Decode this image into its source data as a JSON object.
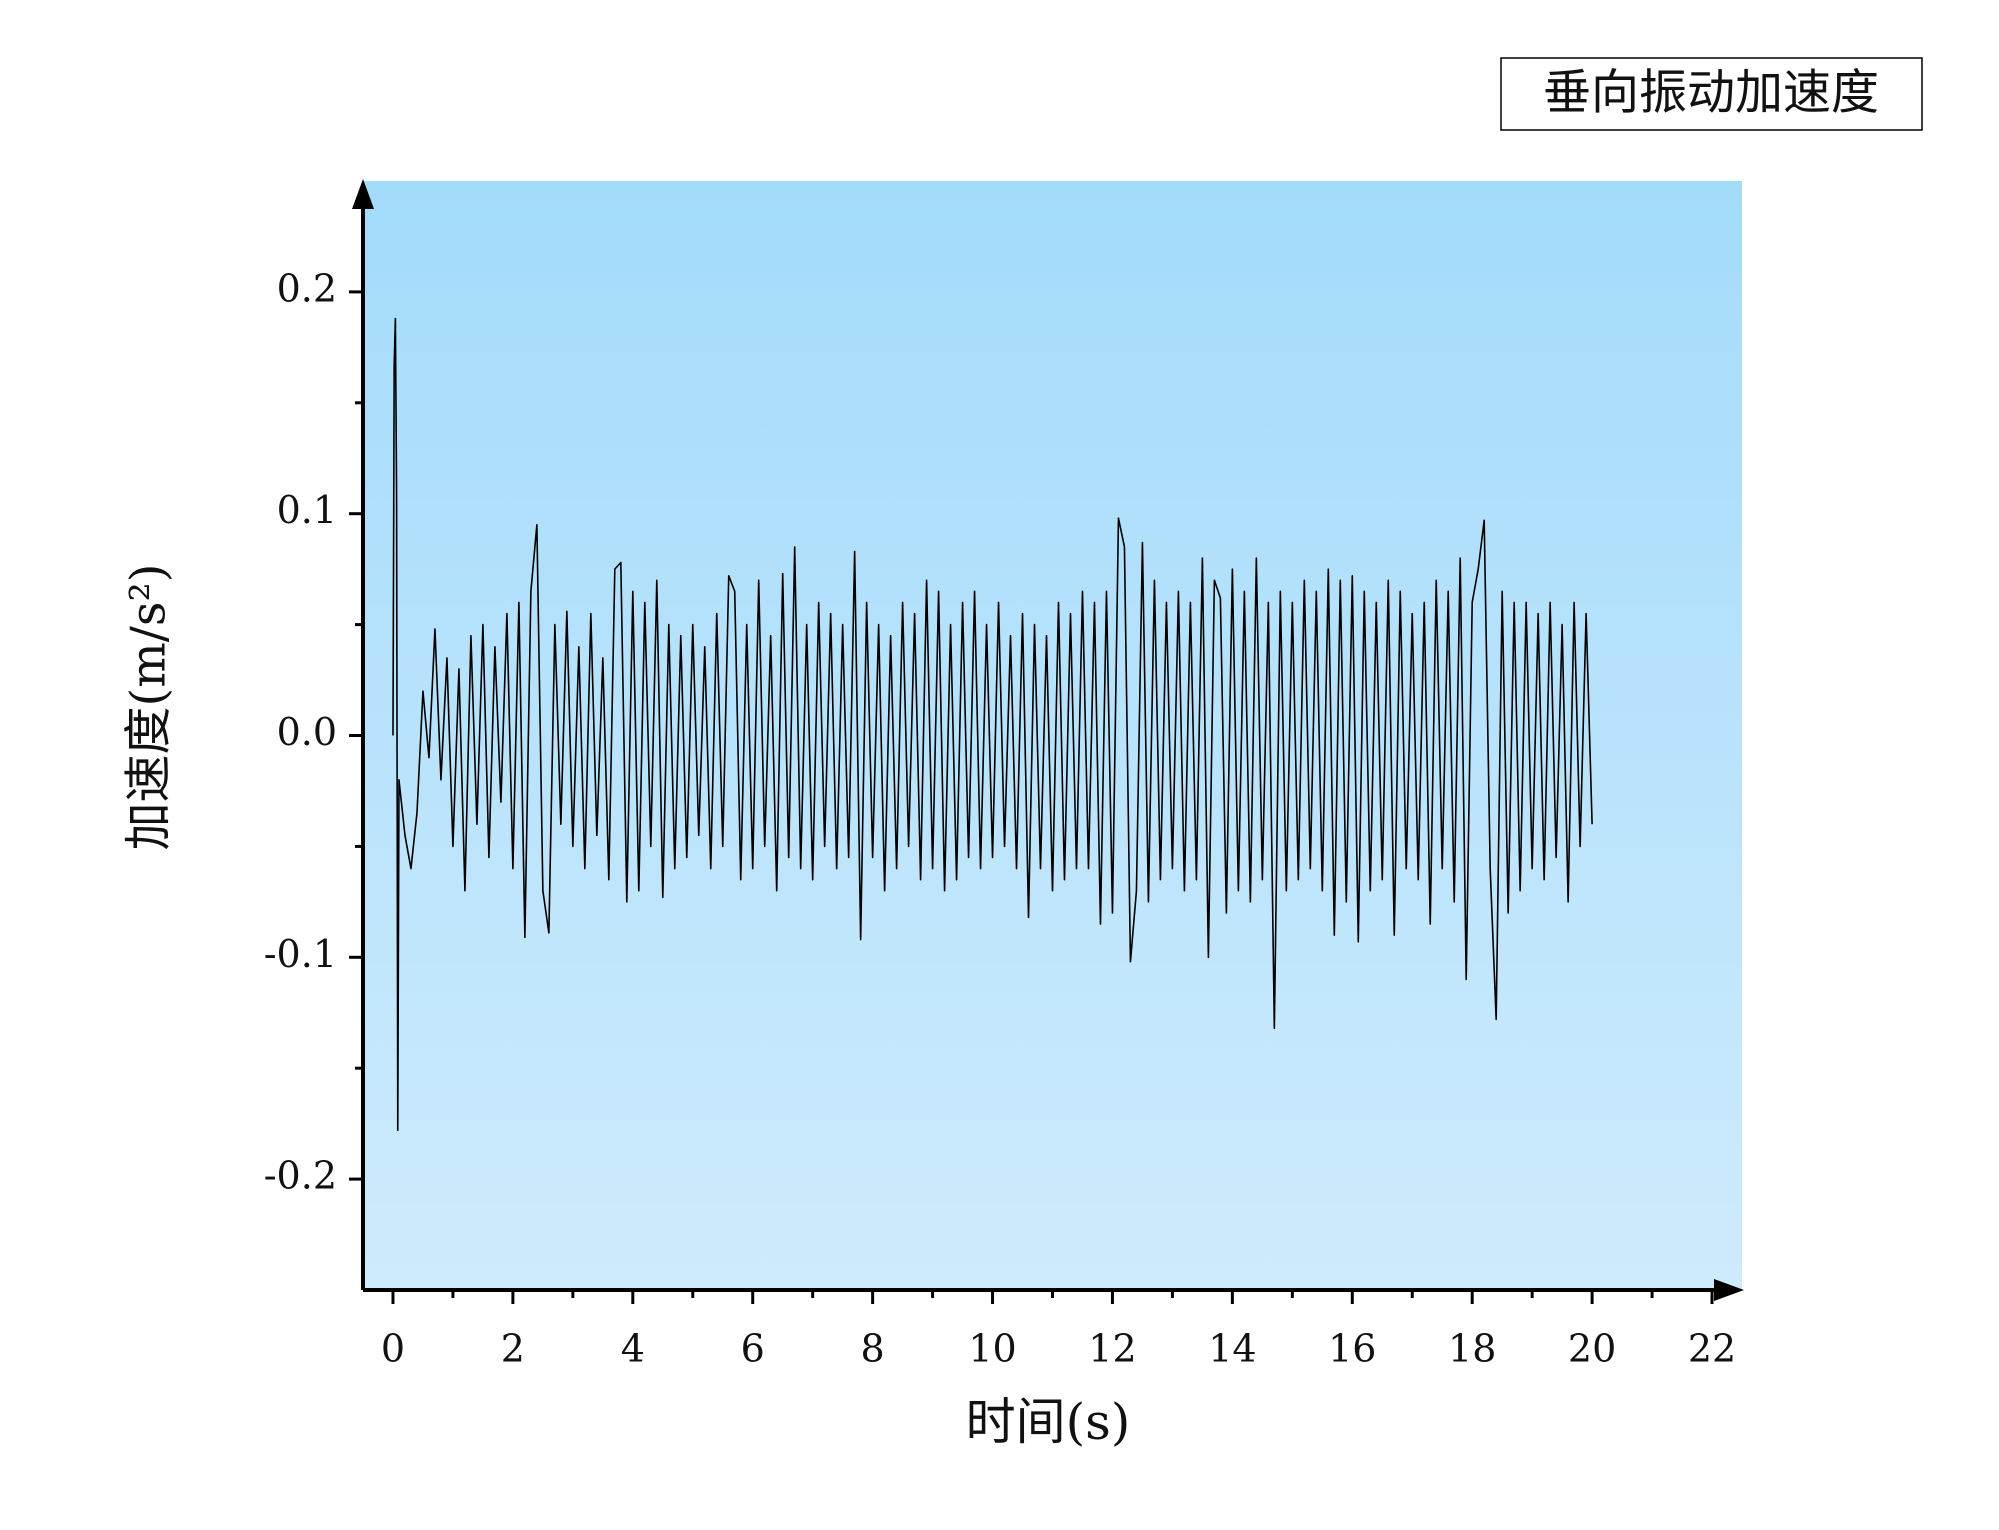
{
  "chart_data": {
    "type": "line",
    "x_label": "时间(s)",
    "y_label": "加速度(m/s²)",
    "x": [
      0,
      0.02,
      0.04,
      0.06,
      0.08,
      0.1,
      0.2,
      0.3,
      0.4,
      0.5,
      0.6,
      0.7,
      0.8,
      0.9,
      1.0,
      1.1,
      1.2,
      1.3,
      1.4,
      1.5,
      1.6,
      1.7,
      1.8,
      1.9,
      2.0,
      2.1,
      2.2,
      2.3,
      2.4,
      2.5,
      2.6,
      2.7,
      2.8,
      2.9,
      3.0,
      3.1,
      3.2,
      3.3,
      3.4,
      3.5,
      3.6,
      3.7,
      3.8,
      3.9,
      4.0,
      4.1,
      4.2,
      4.3,
      4.4,
      4.5,
      4.6,
      4.7,
      4.8,
      4.9,
      5.0,
      5.1,
      5.2,
      5.3,
      5.4,
      5.5,
      5.6,
      5.7,
      5.8,
      5.9,
      6.0,
      6.1,
      6.2,
      6.3,
      6.4,
      6.5,
      6.6,
      6.7,
      6.8,
      6.9,
      7.0,
      7.1,
      7.2,
      7.3,
      7.4,
      7.5,
      7.6,
      7.7,
      7.8,
      7.9,
      8.0,
      8.1,
      8.2,
      8.3,
      8.4,
      8.5,
      8.6,
      8.7,
      8.8,
      8.9,
      9.0,
      9.1,
      9.2,
      9.3,
      9.4,
      9.5,
      9.6,
      9.7,
      9.8,
      9.9,
      10.0,
      10.1,
      10.2,
      10.3,
      10.4,
      10.5,
      10.6,
      10.7,
      10.8,
      10.9,
      11.0,
      11.1,
      11.2,
      11.3,
      11.4,
      11.5,
      11.6,
      11.7,
      11.8,
      11.9,
      12.0,
      12.1,
      12.2,
      12.3,
      12.4,
      12.5,
      12.6,
      12.7,
      12.8,
      12.9,
      13.0,
      13.1,
      13.2,
      13.3,
      13.4,
      13.5,
      13.6,
      13.7,
      13.8,
      13.9,
      14.0,
      14.1,
      14.2,
      14.3,
      14.4,
      14.5,
      14.6,
      14.7,
      14.8,
      14.9,
      15.0,
      15.1,
      15.2,
      15.3,
      15.4,
      15.5,
      15.6,
      15.7,
      15.8,
      15.9,
      16.0,
      16.1,
      16.2,
      16.3,
      16.4,
      16.5,
      16.6,
      16.7,
      16.8,
      16.9,
      17.0,
      17.1,
      17.2,
      17.3,
      17.4,
      17.5,
      17.6,
      17.7,
      17.8,
      17.9,
      18.0,
      18.1,
      18.2,
      18.3,
      18.4,
      18.5,
      18.6,
      18.7,
      18.8,
      18.9,
      19.0,
      19.1,
      19.2,
      19.3,
      19.4,
      19.5,
      19.6,
      19.7,
      19.8,
      19.9,
      20.0
    ],
    "series": [
      {
        "name": "垂向振动加速度",
        "color": "#000000",
        "values": [
          0,
          0.167,
          0.188,
          0.11,
          -0.178,
          -0.02,
          -0.045,
          -0.06,
          -0.035,
          0.02,
          -0.01,
          0.048,
          -0.02,
          0.035,
          -0.05,
          0.03,
          -0.07,
          0.045,
          -0.04,
          0.05,
          -0.055,
          0.04,
          -0.03,
          0.055,
          -0.06,
          0.06,
          -0.091,
          0.065,
          0.095,
          -0.07,
          -0.089,
          0.05,
          -0.04,
          0.056,
          -0.05,
          0.04,
          -0.06,
          0.055,
          -0.045,
          0.035,
          -0.065,
          0.075,
          0.078,
          -0.075,
          0.065,
          -0.07,
          0.06,
          -0.05,
          0.07,
          -0.073,
          0.05,
          -0.06,
          0.045,
          -0.055,
          0.05,
          -0.045,
          0.04,
          -0.06,
          0.055,
          -0.05,
          0.072,
          0.065,
          -0.065,
          0.05,
          -0.06,
          0.07,
          -0.05,
          0.045,
          -0.07,
          0.073,
          -0.055,
          0.085,
          -0.06,
          0.05,
          -0.065,
          0.06,
          -0.05,
          0.055,
          -0.06,
          0.05,
          -0.055,
          0.083,
          -0.092,
          0.06,
          -0.055,
          0.05,
          -0.07,
          0.045,
          -0.06,
          0.06,
          -0.05,
          0.055,
          -0.065,
          0.07,
          -0.06,
          0.065,
          -0.07,
          0.05,
          -0.065,
          0.06,
          -0.055,
          0.065,
          -0.06,
          0.05,
          -0.055,
          0.06,
          -0.05,
          0.045,
          -0.06,
          0.055,
          -0.082,
          0.05,
          -0.06,
          0.045,
          -0.07,
          0.06,
          -0.065,
          0.055,
          -0.06,
          0.065,
          -0.06,
          0.06,
          -0.085,
          0.065,
          -0.08,
          0.098,
          0.085,
          -0.102,
          -0.07,
          0.087,
          -0.075,
          0.07,
          -0.065,
          0.06,
          -0.06,
          0.065,
          -0.07,
          0.06,
          -0.065,
          0.08,
          -0.1,
          0.07,
          0.062,
          -0.08,
          0.075,
          -0.07,
          0.065,
          -0.075,
          0.08,
          -0.065,
          0.06,
          -0.132,
          0.065,
          -0.07,
          0.06,
          -0.065,
          0.07,
          -0.06,
          0.065,
          -0.07,
          0.075,
          -0.09,
          0.07,
          -0.075,
          0.072,
          -0.093,
          0.065,
          -0.07,
          0.06,
          -0.065,
          0.07,
          -0.09,
          0.065,
          -0.06,
          0.055,
          -0.065,
          0.06,
          -0.085,
          0.07,
          -0.06,
          0.065,
          -0.075,
          0.08,
          -0.11,
          0.06,
          0.075,
          0.097,
          -0.06,
          -0.128,
          0.065,
          -0.08,
          0.06,
          -0.07,
          0.06,
          -0.06,
          0.055,
          -0.065,
          0.06,
          -0.055,
          0.05,
          -0.075,
          0.06,
          -0.05,
          0.055,
          -0.04
        ]
      }
    ],
    "xlim": [
      -0.5,
      22.5
    ],
    "ylim": [
      -0.25,
      0.25
    ],
    "xticks": [
      0,
      2,
      4,
      6,
      8,
      10,
      12,
      14,
      16,
      18,
      20,
      22
    ],
    "yticks": [
      -0.2,
      -0.1,
      {
        "value": 0,
        "label": "0.0"
      },
      0.1,
      0.2
    ],
    "legend": "upper right",
    "grid": false
  }
}
